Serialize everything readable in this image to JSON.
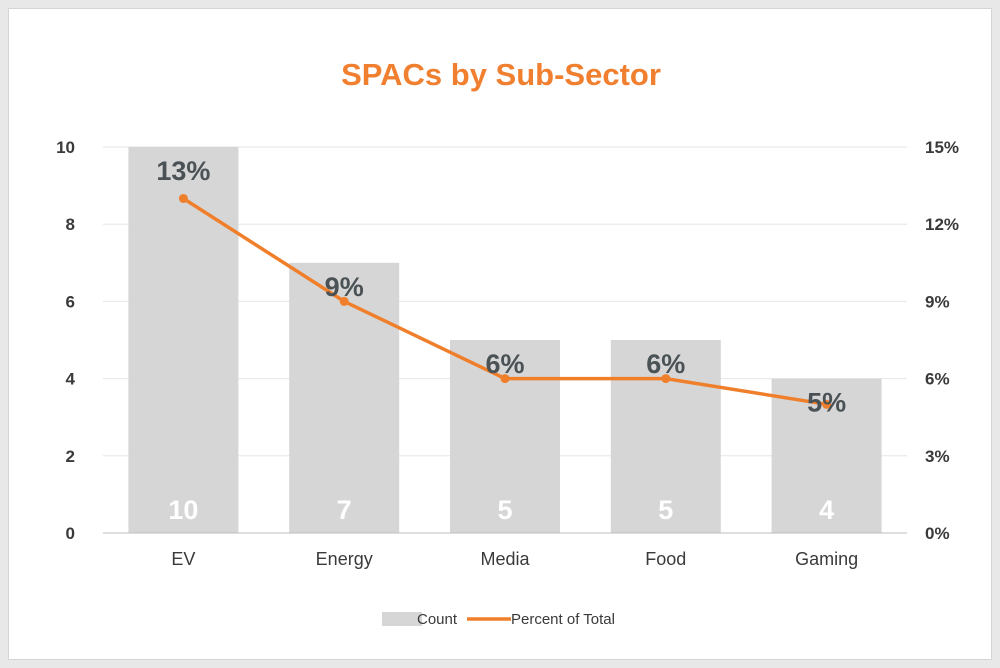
{
  "chart_data": {
    "type": "bar",
    "title": "SPACs by Sub-Sector",
    "categories": [
      "EV",
      "Energy",
      "Media",
      "Food",
      "Gaming"
    ],
    "series": [
      {
        "name": "Count",
        "type": "bar",
        "axis": "left",
        "values": [
          10,
          7,
          5,
          5,
          4
        ],
        "data_labels": [
          "10",
          "7",
          "5",
          "5",
          "4"
        ]
      },
      {
        "name": "Percent of Total",
        "type": "line",
        "axis": "right",
        "values": [
          13,
          9,
          6,
          6,
          5
        ],
        "data_labels": [
          "13%",
          "9%",
          "6%",
          "6%",
          "5%"
        ]
      }
    ],
    "y_left": {
      "ylim": [
        0,
        10
      ],
      "ticks": [
        "0",
        "2",
        "4",
        "6",
        "8",
        "10"
      ]
    },
    "y_right": {
      "ylim": [
        0,
        15
      ],
      "ticks": [
        "0%",
        "3%",
        "6%",
        "9%",
        "12%",
        "15%"
      ]
    },
    "grid": true,
    "legend_position": "bottom"
  },
  "colors": {
    "title": "#F08030",
    "bar": "#D6D6D6",
    "line": "#F07F2C",
    "grid": "#E6E6E6",
    "axis": "#BDBDBD",
    "frame": "#E8E8E8"
  }
}
